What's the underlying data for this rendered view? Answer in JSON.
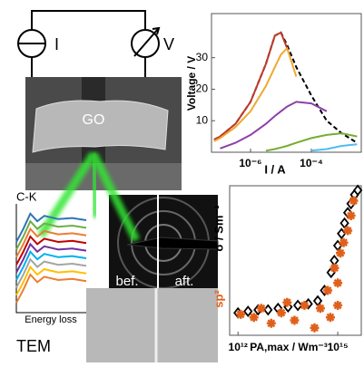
{
  "diagram": {
    "current_label": "I",
    "voltage_label": "V",
    "sample_label": "GO",
    "spectrum_label": "C-K",
    "image_label": "TEM",
    "before_label": "bef.",
    "after_label": "aft."
  },
  "chart_data": [
    {
      "type": "line",
      "x_label": "I / A",
      "y_label": "Voltage / V",
      "log_x": true,
      "xlim": [
        5.2e-08,
        0.0044
      ],
      "ylim": [
        0,
        44
      ],
      "xticks": [
        {
          "value": 1e-06,
          "label": "10⁻⁶"
        },
        {
          "value": 0.0001,
          "label": "10⁻⁴"
        }
      ],
      "yticks": [
        10,
        20,
        30
      ],
      "x": [
        6.3e-08,
        1e-07,
        3.2e-07,
        1e-06,
        3.2e-06,
        6.3e-06,
        1e-05,
        1.6e-05,
        3.2e-05,
        0.0001,
        0.00032,
        0.001,
        0.0032
      ],
      "series": [
        {
          "color": "#000000",
          "style": "dashed",
          "values": [
            4,
            5,
            9,
            16,
            28,
            37,
            38,
            34,
            27,
            18,
            10,
            6,
            3
          ]
        },
        {
          "color": "#c0392b",
          "style": "solid",
          "values": [
            4,
            5,
            9,
            16,
            28,
            37,
            38,
            33,
            null,
            null,
            null,
            null,
            null
          ]
        },
        {
          "color": "#f0a830",
          "style": "solid",
          "values": [
            3.5,
            4.5,
            8,
            13,
            21,
            27,
            31,
            33,
            24,
            null,
            null,
            null,
            null
          ]
        },
        {
          "color": "#8e3fa8",
          "style": "solid",
          "values": [
            null,
            1.2,
            3,
            5.5,
            9,
            11.5,
            13,
            14.5,
            16,
            15.5,
            13,
            null,
            null
          ]
        },
        {
          "color": "#77ac30",
          "style": "solid",
          "values": [
            null,
            null,
            null,
            null,
            0.5,
            1,
            1.5,
            2,
            3,
            4.5,
            5.5,
            6,
            5
          ]
        },
        {
          "color": "#4dbeee",
          "style": "solid",
          "values": [
            null,
            null,
            null,
            null,
            null,
            null,
            null,
            null,
            null,
            0.5,
            1,
            2,
            2.5
          ]
        }
      ]
    },
    {
      "type": "scatter",
      "x_label": "PA,max / Wm⁻³",
      "log_x": true,
      "xlim": [
        560000000000.0,
        5100000000000000.0
      ],
      "ylim": [
        0,
        1
      ],
      "xticks": [
        {
          "value": 1000000000000.0,
          "label": "10¹²"
        },
        {
          "value": 1000000000000000.0,
          "label": "10¹⁵"
        }
      ],
      "series": [
        {
          "name": "σ / Sm⁻¹",
          "color": "#000000",
          "marker": "diamond",
          "x": [
            1000000000000.0,
            2000000000000.0,
            4000000000000.0,
            8000000000000.0,
            16000000000000.0,
            32000000000000.0,
            63000000000000.0,
            130000000000000.0,
            250000000000000.0,
            400000000000000.0,
            630000000000000.0,
            790000000000000.0,
            1000000000000000.0,
            1300000000000000.0,
            1600000000000000.0,
            2000000000000000.0,
            2500000000000000.0,
            3200000000000000.0,
            4000000000000000.0
          ],
          "values": [
            0.15,
            0.16,
            0.17,
            0.17,
            0.18,
            0.19,
            0.2,
            0.21,
            0.23,
            0.3,
            0.42,
            0.5,
            0.6,
            0.68,
            0.75,
            0.82,
            0.88,
            0.94,
            0.97
          ]
        },
        {
          "name": "sp²",
          "color": "#e0601a",
          "marker": "asterisk",
          "x": [
            1200000000000.0,
            3000000000000.0,
            5000000000000.0,
            10000000000000.0,
            20000000000000.0,
            30000000000000.0,
            50000000000000.0,
            100000000000000.0,
            200000000000000.0,
            300000000000000.0,
            500000000000000.0,
            600000000000000.0,
            800000000000000.0,
            1000000000000000.0,
            1200000000000000.0,
            1500000000000000.0,
            2000000000000000.0,
            2500000000000000.0,
            3000000000000000.0,
            1000000000000000.0
          ],
          "values": [
            0.14,
            0.12,
            0.18,
            0.08,
            0.15,
            0.22,
            0.1,
            0.2,
            0.05,
            0.18,
            0.3,
            0.12,
            0.45,
            0.35,
            0.55,
            0.62,
            0.7,
            0.8,
            0.9,
            0.2
          ]
        }
      ]
    },
    {
      "type": "line",
      "x_label": "Energy loss",
      "log_x": false,
      "xlim": [
        0,
        10
      ],
      "ylim": [
        0,
        10
      ],
      "x": [
        0,
        1,
        2,
        3,
        4,
        6,
        8,
        10
      ],
      "series": [
        {
          "color": "#2e75b6",
          "style": "solid",
          "values": [
            6.5,
            7.7,
            9.1,
            8.4,
            8.9,
            8.6,
            8.7,
            8.5
          ]
        },
        {
          "color": "#70ad47",
          "style": "solid",
          "values": [
            5.8,
            7,
            8.4,
            7.7,
            8.2,
            7.9,
            8,
            7.8
          ]
        },
        {
          "color": "#ed7d31",
          "style": "solid",
          "values": [
            5.1,
            6.3,
            7.7,
            7,
            7.5,
            7.2,
            7.3,
            7.1
          ]
        },
        {
          "color": "#c00000",
          "style": "solid",
          "values": [
            4.4,
            5.6,
            7,
            6.3,
            6.8,
            6.5,
            6.6,
            6.4
          ]
        },
        {
          "color": "#7030a0",
          "style": "solid",
          "values": [
            3.7,
            4.9,
            6.3,
            5.6,
            6.1,
            5.8,
            5.9,
            5.7
          ]
        },
        {
          "color": "#00b0f0",
          "style": "solid",
          "values": [
            3,
            4.2,
            5.6,
            4.9,
            5.4,
            5.1,
            5.2,
            5
          ]
        },
        {
          "color": "#a5a5a5",
          "style": "solid",
          "values": [
            2.3,
            3.5,
            4.9,
            4.2,
            4.7,
            4.4,
            4.5,
            4.3
          ]
        },
        {
          "color": "#ffc000",
          "style": "solid",
          "values": [
            1.6,
            2.8,
            4.2,
            3.5,
            4,
            3.7,
            3.8,
            3.6
          ]
        },
        {
          "color": "#ed7d31",
          "style": "solid",
          "values": [
            0.9,
            2.1,
            3.5,
            2.8,
            3.3,
            3,
            3.1,
            2.9
          ]
        }
      ]
    }
  ]
}
